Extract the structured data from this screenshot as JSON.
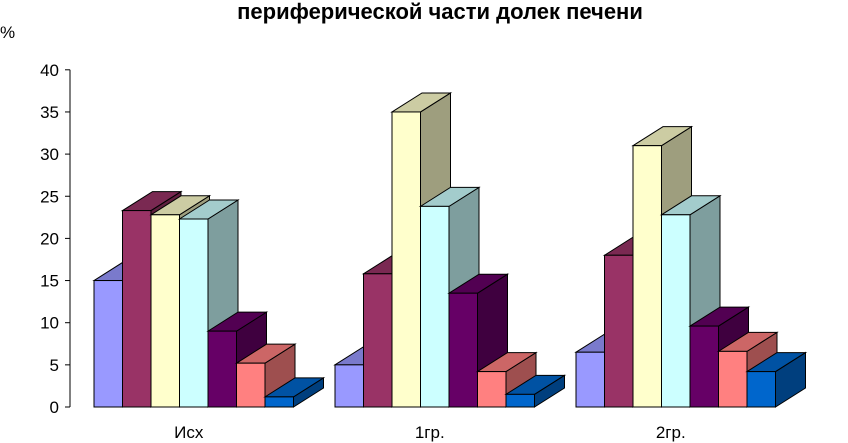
{
  "chart_data": {
    "type": "bar",
    "title": "периферической части долек печени",
    "ylabel": "%",
    "ylim": [
      0,
      40
    ],
    "yticks": [
      "0",
      "5",
      "10",
      "15",
      "20",
      "25",
      "30",
      "35",
      "40"
    ],
    "categories": [
      "Исх",
      "1гр.",
      "2гр."
    ],
    "series": [
      {
        "color": "#9999ff",
        "values": [
          15,
          5,
          6.5
        ]
      },
      {
        "color": "#993366",
        "values": [
          23.3,
          15.8,
          18
        ]
      },
      {
        "color": "#ffffcc",
        "values": [
          22.8,
          35,
          31
        ]
      },
      {
        "color": "#ccffff",
        "values": [
          22.3,
          23.8,
          22.8
        ]
      },
      {
        "color": "#660066",
        "values": [
          9,
          13.5,
          9.6
        ]
      },
      {
        "color": "#ff8080",
        "values": [
          5.2,
          4.2,
          6.6
        ]
      },
      {
        "color": "#0066cc",
        "values": [
          1.2,
          1.5,
          4.2
        ]
      }
    ],
    "grid": false,
    "legend": "none"
  }
}
